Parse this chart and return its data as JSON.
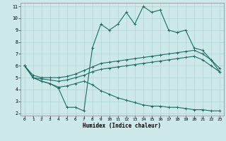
{
  "xlabel": "Humidex (Indice chaleur)",
  "bg_color": "#cce8e8",
  "grid_color": "#aed4d4",
  "line_color": "#1a6e64",
  "xlim_min": -0.5,
  "xlim_max": 23.5,
  "ylim_min": 1.8,
  "ylim_max": 11.3,
  "xticks": [
    0,
    1,
    2,
    3,
    4,
    5,
    6,
    7,
    8,
    9,
    10,
    11,
    12,
    13,
    14,
    15,
    16,
    17,
    18,
    19,
    20,
    21,
    22,
    23
  ],
  "yticks": [
    2,
    3,
    4,
    5,
    6,
    7,
    8,
    9,
    10,
    11
  ],
  "line1_y": [
    6.0,
    5.0,
    4.7,
    4.5,
    4.1,
    2.5,
    2.5,
    2.2,
    7.5,
    9.5,
    9.0,
    9.5,
    10.5,
    9.5,
    11.0,
    10.5,
    10.7,
    9.0,
    8.8,
    9.0,
    7.5,
    7.3,
    6.5,
    5.5
  ],
  "line2_y": [
    6.0,
    5.2,
    5.0,
    5.0,
    5.0,
    5.1,
    5.3,
    5.6,
    5.9,
    6.2,
    6.3,
    6.4,
    6.5,
    6.6,
    6.7,
    6.8,
    6.9,
    7.0,
    7.1,
    7.2,
    7.3,
    7.0,
    6.5,
    5.8
  ],
  "line3_y": [
    6.0,
    5.0,
    4.9,
    4.8,
    4.7,
    4.8,
    5.0,
    5.2,
    5.5,
    5.7,
    5.8,
    5.9,
    6.0,
    6.1,
    6.2,
    6.3,
    6.4,
    6.5,
    6.6,
    6.7,
    6.8,
    6.5,
    6.0,
    5.5
  ],
  "line4_y": [
    6.0,
    5.0,
    4.7,
    4.5,
    4.2,
    4.3,
    4.5,
    4.7,
    4.4,
    3.9,
    3.6,
    3.3,
    3.1,
    2.9,
    2.7,
    2.6,
    2.6,
    2.5,
    2.5,
    2.4,
    2.3,
    2.3,
    2.2,
    2.2
  ],
  "tick_fontsize": 4.5,
  "xlabel_fontsize": 5.5
}
